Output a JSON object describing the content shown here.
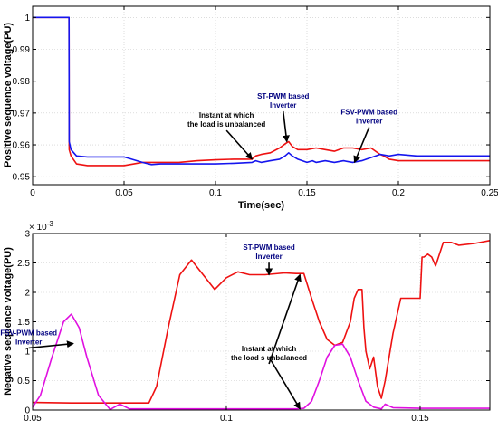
{
  "chart_data": [
    {
      "type": "line",
      "xlabel": "Time(sec)",
      "ylabel": "Positive sequence voltage(PU)",
      "xlim": [
        0,
        0.25
      ],
      "ylim": [
        0.9475,
        1.0035
      ],
      "x_ticks": [
        0,
        0.05,
        0.1,
        0.15,
        0.2,
        0.25
      ],
      "x_tick_labels": [
        "0",
        "0.05",
        "0.1",
        "0.15",
        "0.2",
        "0.25"
      ],
      "y_ticks": [
        0.95,
        0.96,
        0.97,
        0.98,
        0.99,
        1.0
      ],
      "y_tick_labels": [
        "0.95",
        "0.96",
        "0.97",
        "0.98",
        "0.99",
        "1"
      ],
      "grid": true,
      "colors": [
        "#ee1111",
        "#1515ee"
      ],
      "series": [
        {
          "x": [
            0,
            0.0199,
            0.02,
            0.021,
            0.024,
            0.03,
            0.04,
            0.05,
            0.06,
            0.07,
            0.08,
            0.09,
            0.1,
            0.11,
            0.12,
            0.122,
            0.125,
            0.13,
            0.135,
            0.1385,
            0.14,
            0.142,
            0.145,
            0.15,
            0.155,
            0.16,
            0.165,
            0.17,
            0.175,
            0.18,
            0.185,
            0.19,
            0.192,
            0.195,
            0.2,
            0.21,
            0.22,
            0.23,
            0.24,
            0.25
          ],
          "y": [
            1.0,
            1.0,
            0.9585,
            0.9565,
            0.954,
            0.9535,
            0.9535,
            0.9535,
            0.9545,
            0.9545,
            0.9545,
            0.955,
            0.9553,
            0.9555,
            0.9555,
            0.9565,
            0.957,
            0.9575,
            0.959,
            0.9605,
            0.961,
            0.9595,
            0.9585,
            0.9585,
            0.959,
            0.9585,
            0.958,
            0.959,
            0.959,
            0.9585,
            0.959,
            0.957,
            0.9565,
            0.9555,
            0.955,
            0.955,
            0.955,
            0.955,
            0.955,
            0.955
          ]
        },
        {
          "x": [
            0,
            0.0199,
            0.02,
            0.021,
            0.024,
            0.03,
            0.04,
            0.05,
            0.06,
            0.065,
            0.07,
            0.08,
            0.09,
            0.1,
            0.11,
            0.12,
            0.122,
            0.125,
            0.13,
            0.135,
            0.138,
            0.14,
            0.142,
            0.145,
            0.15,
            0.153,
            0.155,
            0.16,
            0.165,
            0.17,
            0.175,
            0.18,
            0.185,
            0.19,
            0.195,
            0.2,
            0.21,
            0.22,
            0.23,
            0.24,
            0.25
          ],
          "y": [
            1.0,
            1.0,
            0.961,
            0.9585,
            0.9565,
            0.9562,
            0.9562,
            0.9562,
            0.9545,
            0.9538,
            0.954,
            0.954,
            0.954,
            0.954,
            0.9542,
            0.9545,
            0.955,
            0.9545,
            0.955,
            0.9555,
            0.9565,
            0.9575,
            0.9565,
            0.9555,
            0.9545,
            0.955,
            0.9545,
            0.955,
            0.9545,
            0.955,
            0.9545,
            0.955,
            0.956,
            0.957,
            0.9565,
            0.957,
            0.9565,
            0.9565,
            0.9565,
            0.9565,
            0.9565
          ]
        }
      ],
      "annotations": [
        {
          "lines": [
            "ST-PWM based",
            "Inverter"
          ],
          "x": 0.137,
          "y": 0.9745,
          "color": "#000080",
          "arrow_to": [
            0.139,
            0.961
          ]
        },
        {
          "lines": [
            "Instant at which",
            "the load is unbalanced"
          ],
          "x": 0.106,
          "y": 0.9685,
          "color": "#000000",
          "arrow_to": [
            0.12,
            0.9555
          ]
        },
        {
          "lines": [
            "FSV-PWM based",
            "Inverter"
          ],
          "x": 0.184,
          "y": 0.9695,
          "color": "#000080",
          "arrow_to": [
            0.176,
            0.9545
          ]
        }
      ]
    },
    {
      "type": "line",
      "xlabel": "",
      "ylabel": "Negative sequence voltage(PU)",
      "y_multiplier": "× 10",
      "y_exponent": "-3",
      "xlim": [
        0.05,
        0.168
      ],
      "ylim": [
        0,
        3
      ],
      "x_ticks": [
        0.05,
        0.1,
        0.15
      ],
      "x_tick_labels": [
        "0.05",
        "0.1",
        "0.15"
      ],
      "y_ticks": [
        0,
        0.5,
        1,
        1.5,
        2,
        2.5,
        3
      ],
      "y_tick_labels": [
        "0",
        "0.5",
        "1",
        "1.5",
        "2",
        "2.5",
        "3"
      ],
      "grid": true,
      "colors": [
        "#ee1111",
        "#e010e0"
      ],
      "series": [
        {
          "x": [
            0.05,
            0.06,
            0.07,
            0.08,
            0.082,
            0.085,
            0.088,
            0.091,
            0.094,
            0.097,
            0.1,
            0.103,
            0.106,
            0.11,
            0.115,
            0.118,
            0.12,
            0.122,
            0.124,
            0.126,
            0.128,
            0.13,
            0.132,
            0.133,
            0.134,
            0.135,
            0.1355,
            0.136,
            0.1365,
            0.137,
            0.138,
            0.139,
            0.14,
            0.141,
            0.143,
            0.145,
            0.148,
            0.15,
            0.1505,
            0.151,
            0.152,
            0.153,
            0.154,
            0.156,
            0.158,
            0.16,
            0.164,
            0.168
          ],
          "y": [
            0.13,
            0.12,
            0.12,
            0.12,
            0.4,
            1.4,
            2.3,
            2.55,
            2.3,
            2.05,
            2.25,
            2.35,
            2.3,
            2.3,
            2.33,
            2.32,
            2.32,
            1.9,
            1.5,
            1.2,
            1.1,
            1.15,
            1.5,
            1.9,
            2.05,
            2.05,
            1.4,
            1.0,
            0.85,
            0.7,
            0.9,
            0.4,
            0.2,
            0.5,
            1.3,
            1.9,
            1.9,
            1.9,
            2.6,
            2.6,
            2.65,
            2.6,
            2.45,
            2.85,
            2.85,
            2.8,
            2.83,
            2.88
          ]
        },
        {
          "x": [
            0.05,
            0.052,
            0.055,
            0.058,
            0.06,
            0.062,
            0.064,
            0.067,
            0.07,
            0.0725,
            0.075,
            0.08,
            0.09,
            0.1,
            0.11,
            0.115,
            0.118,
            0.12,
            0.122,
            0.124,
            0.126,
            0.128,
            0.13,
            0.132,
            0.134,
            0.136,
            0.138,
            0.14,
            0.141,
            0.143,
            0.15,
            0.16,
            0.168
          ],
          "y": [
            0.05,
            0.25,
            0.9,
            1.5,
            1.63,
            1.4,
            0.9,
            0.25,
            0.01,
            0.1,
            0.02,
            0.02,
            0.02,
            0.02,
            0.02,
            0.02,
            0.02,
            0.03,
            0.15,
            0.5,
            0.9,
            1.1,
            1.12,
            0.9,
            0.5,
            0.15,
            0.05,
            0.02,
            0.1,
            0.04,
            0.03,
            0.03,
            0.03
          ]
        }
      ],
      "annotations": [
        {
          "lines": [
            "ST-PWM based",
            "Inverter"
          ],
          "x": 0.111,
          "y": 2.72,
          "color": "#000080",
          "arrow_to": [
            0.111,
            2.3
          ]
        },
        {
          "lines": [
            "FSV-PWM based",
            "Inverter"
          ],
          "x": 0.049,
          "y": 1.27,
          "color": "#000080",
          "arrow_to": [
            0.0605,
            1.13
          ]
        },
        {
          "lines": [
            "Instant at which",
            "the load s unbalanced"
          ],
          "x": 0.111,
          "y": 1.0,
          "color": "#000000",
          "arrow_to": [
            0.119,
            2.3
          ]
        },
        {
          "lines": [],
          "x": 0.111,
          "y": 0.9,
          "color": "#000000",
          "arrow_to": [
            0.119,
            0.02
          ]
        }
      ]
    }
  ]
}
